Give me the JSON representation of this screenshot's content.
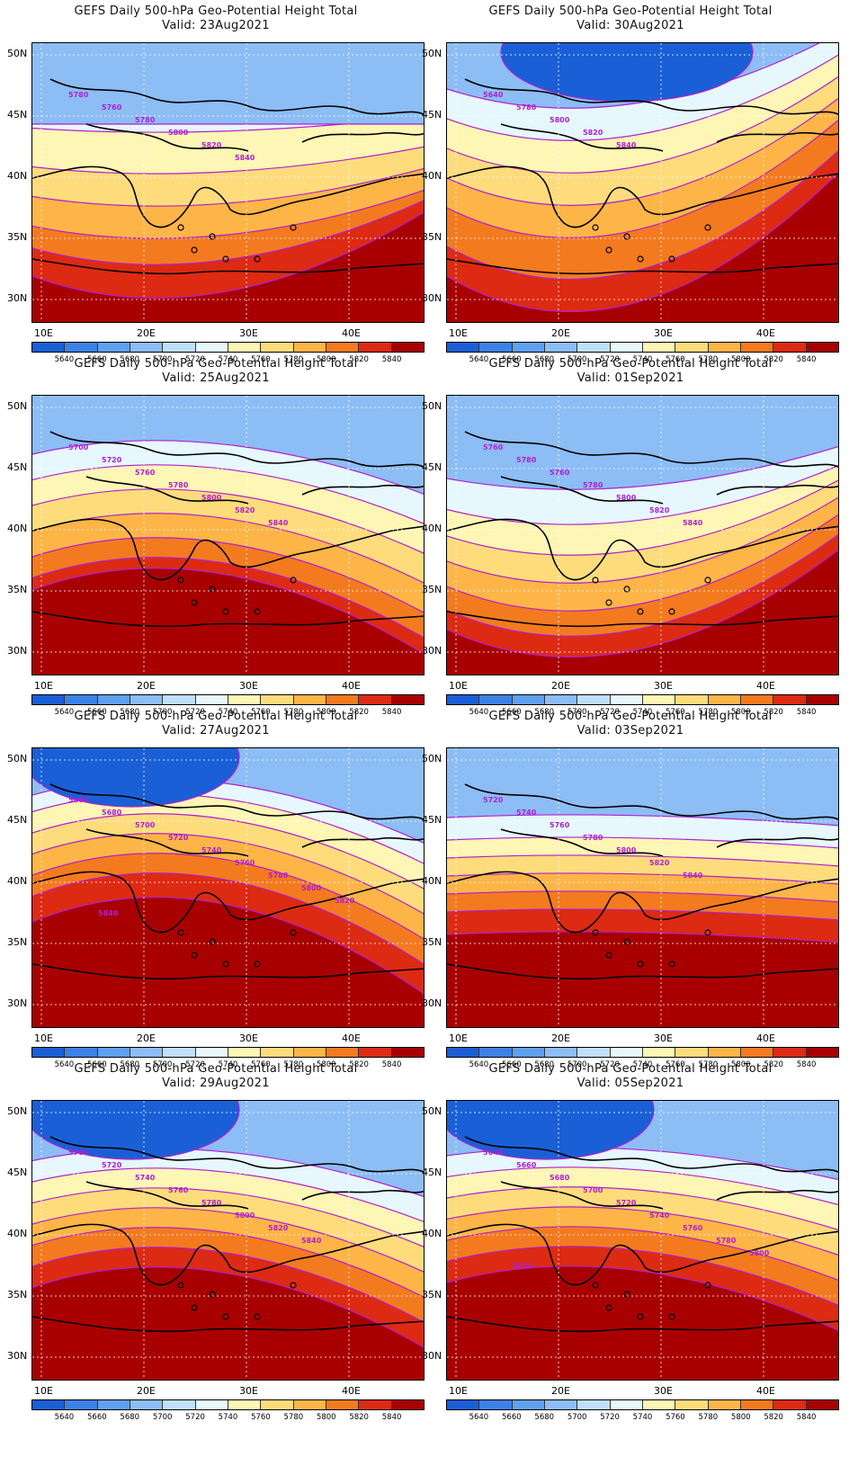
{
  "panels": [
    {
      "title": "GEFS Daily 500-hPa Geo-Potential Height Total",
      "valid": "Valid: 23Aug2021"
    },
    {
      "title": "GEFS Daily 500-hPa Geo-Potential Height Total",
      "valid": "Valid: 30Aug2021"
    },
    {
      "title": "GEFS Daily 500-hPa Geo-Potential Height Total",
      "valid": "Valid: 25Aug2021"
    },
    {
      "title": "GEFS Daily 500-hPa Geo-Potential Height Total",
      "valid": "Valid: 01Sep2021"
    },
    {
      "title": "GEFS Daily 500-hPa Geo-Potential Height Total",
      "valid": "Valid: 27Aug2021"
    },
    {
      "title": "GEFS Daily 500-hPa Geo-Potential Height Total",
      "valid": "Valid: 03Sep2021"
    },
    {
      "title": "GEFS Daily 500-hPa Geo-Potential Height Total",
      "valid": "Valid: 29Aug2021"
    },
    {
      "title": "GEFS Daily 500-hPa Geo-Potential Height Total",
      "valid": "Valid: 05Sep2021"
    }
  ],
  "lat_labels": [
    "50N",
    "45N",
    "40N",
    "35N",
    "30N"
  ],
  "lon_labels": [
    "10E",
    "20E",
    "30E",
    "40E"
  ],
  "colorbar": {
    "labels": [
      "5640",
      "5660",
      "5680",
      "5700",
      "5720",
      "5740",
      "5760",
      "5780",
      "5800",
      "5820",
      "5840"
    ],
    "colors": [
      "#1a5fd6",
      "#3c82e6",
      "#5fa0ef",
      "#8cbdf5",
      "#bfe0fb",
      "#e6f8fd",
      "#fdf6b4",
      "#fedc7c",
      "#fdb547",
      "#f47a1f",
      "#dd2a12",
      "#a80000"
    ]
  },
  "contour_color": "#b020d0",
  "contour_labels": [
    [
      "5780",
      "5760",
      "5780",
      "5800",
      "5820",
      "5840"
    ],
    [
      "5640",
      "5780",
      "5800",
      "5820",
      "5840"
    ],
    [
      "5700",
      "5720",
      "5760",
      "5780",
      "5800",
      "5820",
      "5840"
    ],
    [
      "5760",
      "5780",
      "5760",
      "5780",
      "5800",
      "5820",
      "5840"
    ],
    [
      "5660",
      "5680",
      "5700",
      "5720",
      "5740",
      "5760",
      "5780",
      "5800",
      "5820",
      "5840"
    ],
    [
      "5720",
      "5740",
      "5760",
      "5780",
      "5800",
      "5820",
      "5840"
    ],
    [
      "5700",
      "5720",
      "5740",
      "5760",
      "5780",
      "5800",
      "5820",
      "5840"
    ],
    [
      "5640",
      "5660",
      "5680",
      "5700",
      "5720",
      "5740",
      "5760",
      "5780",
      "5800",
      "5820"
    ]
  ]
}
